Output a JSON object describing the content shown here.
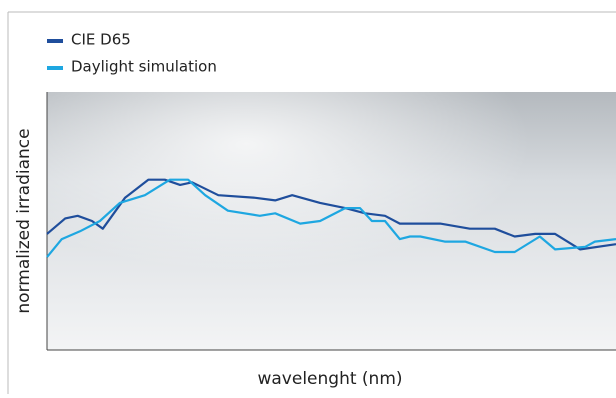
{
  "chart_data": {
    "type": "line",
    "x_label": "wavelenght (nm)",
    "y_label": "normalized irradiance",
    "xlim": [
      0,
      100
    ],
    "ylim": [
      0,
      1
    ],
    "series": [
      {
        "name": "CIE D65",
        "color": "#1f4e9c",
        "x": [
          0,
          3.2,
          5.4,
          7.9,
          9.8,
          13.7,
          17.8,
          20.7,
          23.4,
          25.5,
          30.1,
          36.6,
          40.1,
          43.1,
          48.0,
          52.4,
          55.9,
          59.4,
          62.0,
          69.1,
          74.3,
          78.7,
          82.2,
          85.8,
          89.3,
          93.7,
          100
        ],
        "values": [
          0.45,
          0.51,
          0.52,
          0.5,
          0.47,
          0.59,
          0.66,
          0.66,
          0.64,
          0.65,
          0.6,
          0.59,
          0.58,
          0.6,
          0.57,
          0.55,
          0.53,
          0.52,
          0.49,
          0.49,
          0.47,
          0.47,
          0.44,
          0.45,
          0.45,
          0.39,
          0.41
        ]
      },
      {
        "name": "Daylight simulation",
        "color": "#1ea7e1",
        "x": [
          0,
          2.6,
          5.8,
          9.3,
          12.8,
          17.2,
          21.6,
          24.8,
          27.8,
          31.8,
          37.4,
          40.1,
          44.5,
          48.0,
          52.4,
          55.0,
          57.1,
          59.4,
          62.0,
          63.8,
          65.6,
          69.9,
          73.5,
          78.7,
          82.2,
          86.6,
          89.3,
          94.6,
          96.3,
          100
        ],
        "values": [
          0.36,
          0.43,
          0.46,
          0.5,
          0.57,
          0.6,
          0.66,
          0.66,
          0.6,
          0.54,
          0.52,
          0.53,
          0.49,
          0.5,
          0.55,
          0.55,
          0.5,
          0.5,
          0.43,
          0.44,
          0.44,
          0.42,
          0.42,
          0.38,
          0.38,
          0.44,
          0.39,
          0.4,
          0.42,
          0.43
        ]
      }
    ]
  }
}
